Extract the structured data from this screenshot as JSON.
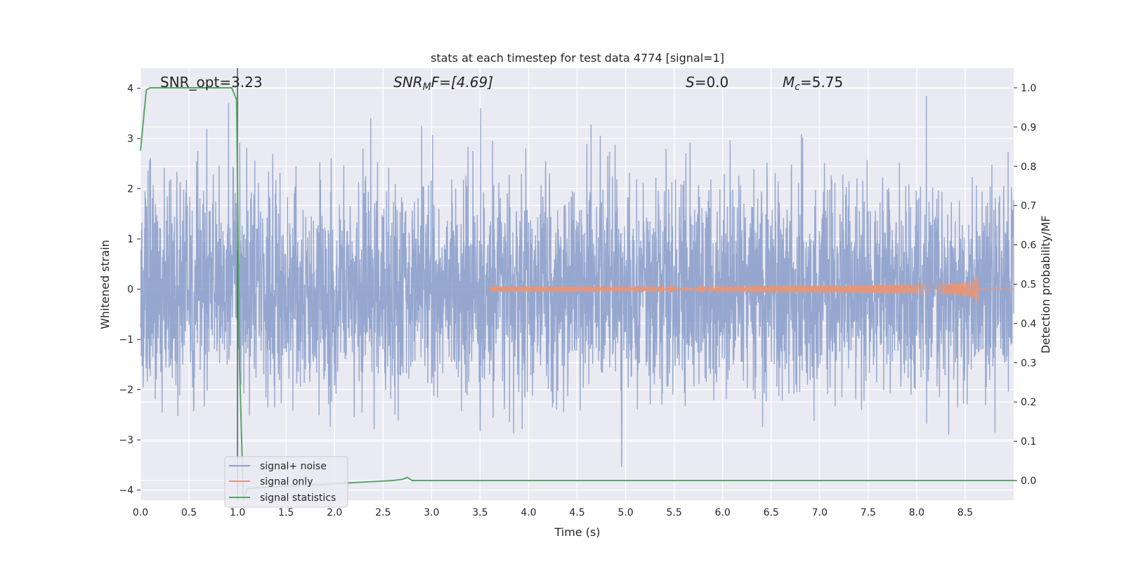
{
  "chart_data": {
    "type": "line",
    "title": "stats at each timestep for test data 4774 [signal=1]",
    "xlabel": "Time (s)",
    "ylabel": "Whitened strain",
    "y2label": "Detection probability/MF",
    "xlim": [
      0.0,
      9.0
    ],
    "ylim": [
      -4.2,
      4.4
    ],
    "y2lim": [
      -0.05,
      1.05
    ],
    "xticks": [
      "0.0",
      "0.5",
      "1.0",
      "1.5",
      "2.0",
      "2.5",
      "3.0",
      "3.5",
      "4.0",
      "4.5",
      "5.0",
      "5.5",
      "6.0",
      "6.5",
      "7.0",
      "7.5",
      "8.0",
      "8.5"
    ],
    "yticks": [
      "4",
      "3",
      "2",
      "1",
      "0",
      "−1",
      "−2",
      "−3",
      "−4"
    ],
    "y2ticks": [
      "1.0",
      "0.9",
      "0.8",
      "0.7",
      "0.6",
      "0.5",
      "0.4",
      "0.3",
      "0.2",
      "0.1",
      "0.0"
    ],
    "grid": true,
    "legend": {
      "placement": "lower-left",
      "entries": [
        "signal+ noise",
        "signal only",
        "signal statistics"
      ]
    },
    "annotations": {
      "snr_opt": "SNR_opt=3.23",
      "snr_mf_sym": "SNR",
      "snr_mf_sub": "M",
      "snr_mf_rest": "F=[4.69]",
      "s_sym": "S",
      "s_rest": "=0.0",
      "mc_sym": "M",
      "mc_sub": "c",
      "mc_rest": "=5.75"
    },
    "vline_x": 1.0,
    "series": [
      {
        "name": "signal+ noise",
        "color": "#8da0cb",
        "kind": "noise",
        "sigma": 1.0,
        "envelope_max": 4.0,
        "envelope_min": -3.85
      },
      {
        "name": "signal only",
        "color": "#e5967a",
        "kind": "chirp",
        "x_start": 3.6,
        "x_merger": 8.64,
        "peak_amplitude": 0.38
      },
      {
        "name": "signal statistics",
        "color": "#55a868",
        "kind": "probability",
        "x": [
          0.0,
          0.06,
          0.1,
          0.2,
          0.5,
          0.8,
          0.94,
          0.99,
          1.02,
          1.06,
          1.1,
          2.6,
          2.7,
          2.75,
          2.8,
          2.9,
          9.0
        ],
        "y": [
          0.84,
          0.995,
          1.0,
          1.0,
          1.0,
          1.0,
          1.0,
          0.97,
          0.3,
          -0.05,
          -0.02,
          0.0,
          0.003,
          0.008,
          0.0,
          0.0,
          0.0
        ]
      }
    ]
  },
  "colors": {
    "plot_bg": "#eaeaf2",
    "grid": "#ffffff",
    "vline": "#555555"
  }
}
